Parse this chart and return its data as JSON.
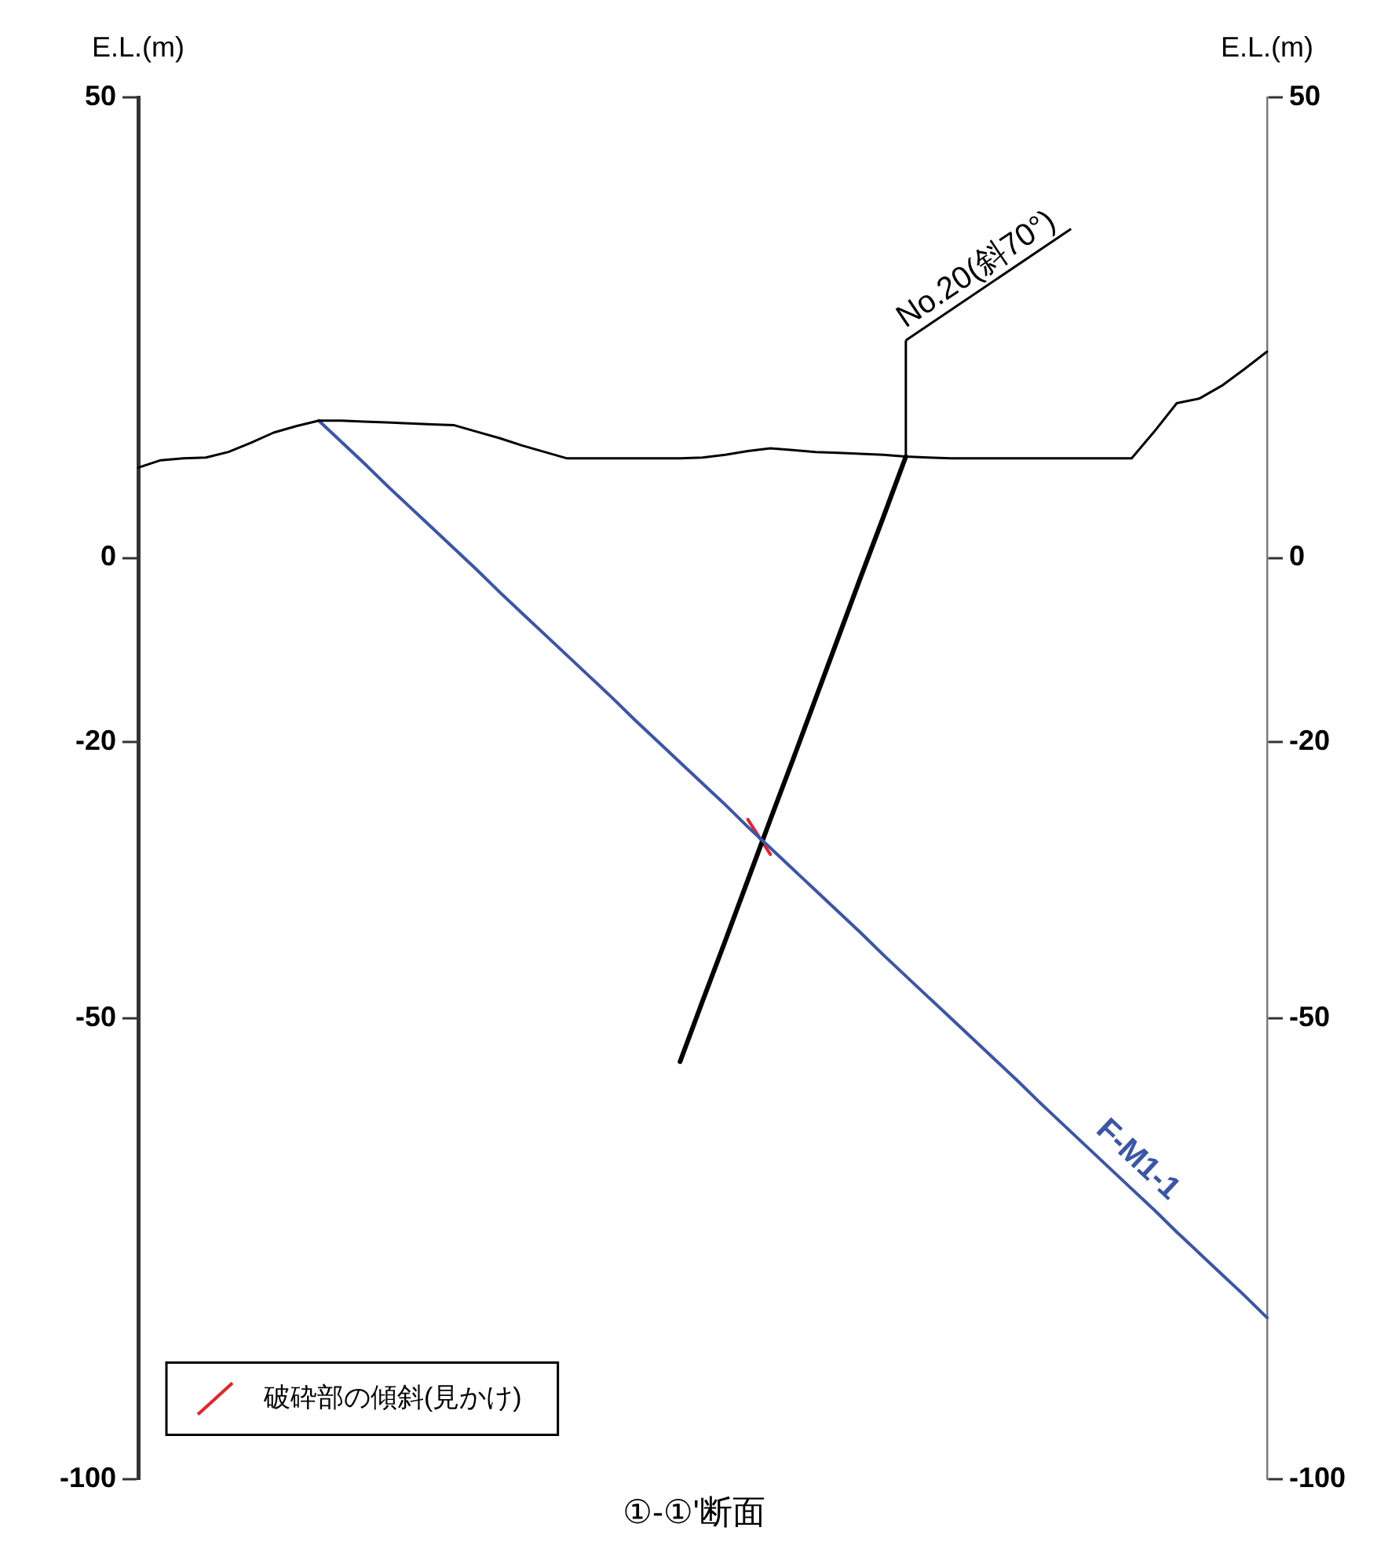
{
  "chart_data": {
    "type": "line",
    "title": "①-①'断面",
    "ylabel": "E.L.(m)",
    "y2label": "E.L.(m)",
    "categories": [
      null,
      null,
      null,
      null,
      null,
      null,
      null,
      null,
      null,
      null,
      null,
      null,
      null,
      null,
      null,
      null,
      null,
      null,
      null,
      null,
      null,
      null,
      null,
      null,
      null,
      null,
      null,
      null,
      null,
      null,
      null,
      null,
      null,
      null,
      null,
      null,
      null,
      null,
      null,
      null,
      null,
      null,
      null,
      null,
      null,
      null,
      null,
      null,
      null,
      null,
      null
    ],
    "ylim": [
      -100,
      50
    ],
    "yticks": [
      -100,
      -50,
      -20,
      0,
      50
    ],
    "y2lim": [
      -100,
      50
    ],
    "y2ticks": [
      -100,
      -50,
      -20,
      0,
      50
    ],
    "tick_labels": "y",
    "grid": false,
    "legend": "bottom left",
    "marker": "none",
    "line_style": "solid",
    "series": [
      {
        "color": "#000000",
        "values": [
          9.8,
          10.6,
          10.8,
          10.9,
          11.5,
          12.5,
          13.6,
          14.3,
          14.9,
          14.9,
          14.8,
          14.7,
          14.6,
          14.5,
          14.4,
          13.7,
          13.0,
          12.2,
          11.5,
          10.8,
          10.8,
          10.8,
          10.8,
          10.8,
          10.8,
          10.9,
          11.2,
          11.6,
          11.9,
          11.7,
          11.5,
          11.4,
          11.3,
          11.2,
          11.0,
          10.9,
          10.8,
          10.8,
          10.8,
          10.8,
          10.8,
          10.8,
          10.8,
          10.8,
          10.8,
          13.7,
          16.8,
          17.3,
          18.7,
          20.5,
          22.4
        ]
      },
      {
        "color": "#3a56a8",
        "values": [
          null,
          null,
          null,
          null,
          null,
          null,
          null,
          null,
          14.9,
          12.6,
          10.3,
          7.9,
          5.6,
          3.3,
          1.0,
          -1.3,
          -3.7,
          -6.0,
          -8.3,
          -10.6,
          -12.9,
          -15.2,
          -17.6,
          -19.9,
          -22.2,
          -24.5,
          -26.8,
          -29.2,
          -31.5,
          -33.8,
          -36.1,
          -38.4,
          -40.7,
          -43.1,
          -45.4,
          -47.7,
          -50.0,
          -52.3,
          -54.6,
          -56.9,
          -59.3,
          -61.6,
          -63.9,
          -66.2,
          -68.5,
          -70.8,
          -73.2,
          -75.5,
          -77.8,
          -80.1,
          -82.5
        ]
      },
      {
        "color": "#000000",
        "values": [
          null,
          null,
          null,
          null,
          null,
          null,
          null,
          null,
          null,
          null,
          null,
          null,
          null,
          null,
          null,
          null,
          null,
          null,
          null,
          null,
          null,
          null,
          null,
          null,
          -54.7,
          -48.1,
          -41.6,
          -35.0,
          -28.4,
          -21.9,
          -15.3,
          -8.7,
          -2.1,
          4.4,
          11.0,
          null,
          null,
          null,
          null,
          null,
          null,
          null,
          null,
          null,
          null,
          null,
          null,
          null,
          null,
          null,
          null
        ]
      },
      {
        "name": "破砕部の傾斜(見かけ)",
        "color": "#e8202a",
        "values": [
          null,
          null,
          null,
          null,
          null,
          null,
          null,
          null,
          null,
          null,
          null,
          null,
          null,
          null,
          null,
          null,
          null,
          null,
          null,
          null,
          null,
          null,
          null,
          null,
          null,
          null,
          null,
          -28.4,
          -32.2,
          null,
          null,
          null,
          null,
          null,
          null,
          null,
          null,
          null,
          null,
          null,
          null,
          null,
          null,
          null,
          null,
          null,
          null,
          null,
          null,
          null,
          null
        ]
      }
    ],
    "annotations": [
      "No.20(斜70°)",
      "F-M1-1"
    ]
  }
}
